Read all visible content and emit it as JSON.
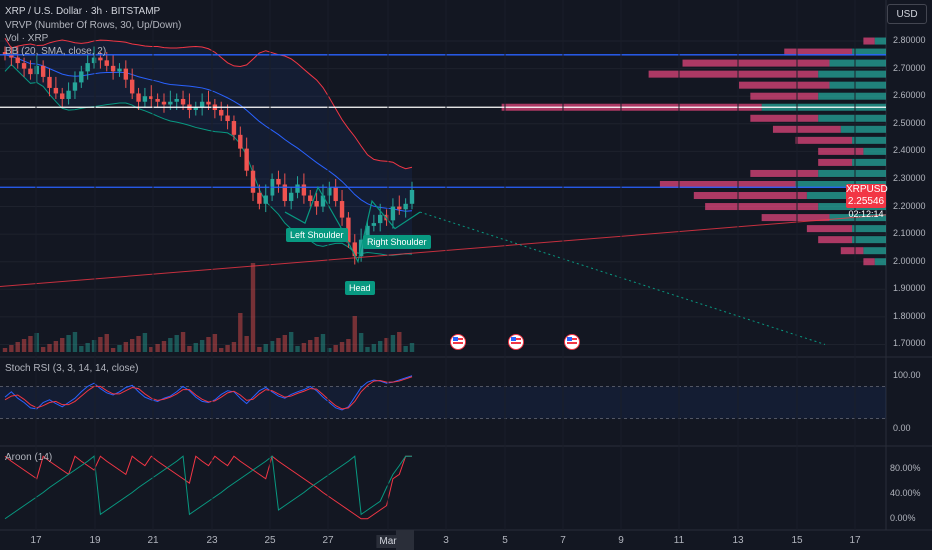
{
  "legend": {
    "title": "XRP / U.S. Dollar · 3h · BITSTAMP",
    "vrvp": "VRVP (Number Of Rows, 30, Up/Down)",
    "vol": "Vol · XRP",
    "bb": "BB (20, SMA, close, 2)"
  },
  "currency_button": "USD",
  "price_tag": {
    "symbol": "XRPUSD",
    "price": "2.25546",
    "countdown": "02:12:14"
  },
  "patterns": {
    "left": "Left Shoulder",
    "head": "Head",
    "right": "Right Shoulder"
  },
  "colors": {
    "up": "#26a69a",
    "down": "#ef5350",
    "blue": "#2962ff",
    "bg": "#131722"
  },
  "chart_data": [
    {
      "type": "candlestick",
      "title": "XRP / U.S. Dollar · 3h · BITSTAMP",
      "y_ticks": [
        "2.80000",
        "2.70000",
        "2.60000",
        "2.50000",
        "2.40000",
        "2.30000",
        "2.20000",
        "2.10000",
        "2.00000",
        "1.90000",
        "1.80000",
        "1.70000"
      ],
      "x_ticks": [
        "17",
        "19",
        "21",
        "23",
        "25",
        "27",
        "Mar",
        "3",
        "5",
        "7",
        "9",
        "11",
        "13",
        "15",
        "17"
      ],
      "active_x_tick": "Mar",
      "ylim": [
        1.68,
        2.84
      ],
      "horizontal_levels": [
        {
          "price": 2.75,
          "color": "#2962ff"
        },
        {
          "price": 2.56,
          "color": "#ffffff"
        },
        {
          "price": 2.27,
          "color": "#2962ff"
        }
      ],
      "close_prices": [
        2.75,
        2.74,
        2.72,
        2.7,
        2.68,
        2.71,
        2.67,
        2.63,
        2.61,
        2.59,
        2.62,
        2.65,
        2.69,
        2.72,
        2.74,
        2.73,
        2.71,
        2.69,
        2.7,
        2.66,
        2.61,
        2.58,
        2.6,
        2.59,
        2.58,
        2.57,
        2.58,
        2.59,
        2.57,
        2.55,
        2.56,
        2.58,
        2.57,
        2.55,
        2.53,
        2.51,
        2.46,
        2.41,
        2.33,
        2.25,
        2.21,
        2.24,
        2.3,
        2.28,
        2.22,
        2.25,
        2.28,
        2.24,
        2.22,
        2.2,
        2.24,
        2.27,
        2.22,
        2.16,
        2.07,
        2.02,
        2.08,
        2.13,
        2.14,
        2.17,
        2.15,
        2.2,
        2.19,
        2.21,
        2.26
      ],
      "volume_profile": [
        {
          "price": 2.8,
          "up": 0.1,
          "down": 0.1
        },
        {
          "price": 2.76,
          "up": 0.3,
          "down": 0.6
        },
        {
          "price": 2.72,
          "up": 0.5,
          "down": 1.3
        },
        {
          "price": 2.68,
          "up": 0.6,
          "down": 1.5
        },
        {
          "price": 2.64,
          "up": 0.5,
          "down": 0.8
        },
        {
          "price": 2.6,
          "up": 0.6,
          "down": 0.6
        },
        {
          "price": 2.56,
          "up": 1.1,
          "down": 2.3
        },
        {
          "price": 2.52,
          "up": 0.6,
          "down": 0.6
        },
        {
          "price": 2.48,
          "up": 0.4,
          "down": 0.6
        },
        {
          "price": 2.44,
          "up": 0.3,
          "down": 0.5
        },
        {
          "price": 2.4,
          "up": 0.2,
          "down": 0.4
        },
        {
          "price": 2.36,
          "up": 0.3,
          "down": 0.3
        },
        {
          "price": 2.32,
          "up": 0.6,
          "down": 0.6
        },
        {
          "price": 2.28,
          "up": 0.8,
          "down": 1.2
        },
        {
          "price": 2.24,
          "up": 0.7,
          "down": 1.0
        },
        {
          "price": 2.2,
          "up": 0.6,
          "down": 1.0
        },
        {
          "price": 2.16,
          "up": 0.5,
          "down": 0.6
        },
        {
          "price": 2.12,
          "up": 0.3,
          "down": 0.4
        },
        {
          "price": 2.08,
          "up": 0.3,
          "down": 0.3
        },
        {
          "price": 2.04,
          "up": 0.2,
          "down": 0.2
        },
        {
          "price": 2.0,
          "up": 0.1,
          "down": 0.1
        }
      ]
    },
    {
      "type": "line",
      "title": "Stoch RSI (3, 3, 14, 14, close)",
      "y_ticks": [
        "100.00",
        "0.00"
      ],
      "ylim": [
        -20,
        120
      ],
      "series": [
        {
          "values": [
            60,
            70,
            58,
            50,
            40,
            38,
            50,
            55,
            48,
            42,
            50,
            58,
            70,
            80,
            86,
            76,
            68,
            64,
            70,
            78,
            82,
            70,
            60,
            55,
            52,
            58,
            62,
            70,
            80,
            72,
            60,
            52,
            50,
            55,
            65,
            72,
            70,
            58,
            48,
            60,
            72,
            78,
            70,
            62,
            58,
            65,
            70,
            74,
            80,
            72,
            60,
            50,
            40,
            36,
            42,
            60,
            78,
            88,
            92,
            90,
            86,
            88,
            92,
            96,
            100
          ],
          "color": "#2962ff"
        },
        {
          "values": [
            55,
            62,
            64,
            56,
            46,
            40,
            44,
            50,
            52,
            46,
            46,
            52,
            62,
            72,
            80,
            80,
            72,
            66,
            66,
            72,
            78,
            76,
            66,
            58,
            54,
            56,
            60,
            66,
            74,
            74,
            64,
            56,
            51,
            53,
            60,
            68,
            71,
            64,
            54,
            56,
            66,
            74,
            72,
            66,
            60,
            62,
            67,
            71,
            76,
            75,
            65,
            54,
            44,
            38,
            40,
            52,
            70,
            82,
            90,
            91,
            88,
            88,
            90,
            94,
            98
          ],
          "color": "#f23645"
        }
      ]
    },
    {
      "type": "line",
      "title": "Aroon (14)",
      "y_ticks": [
        "80.00%",
        "40.00%",
        "0.00%"
      ],
      "ylim": [
        -10,
        110
      ],
      "series": [
        {
          "values": [
            100,
            92,
            85,
            78,
            71,
            64,
            100,
            92,
            85,
            78,
            71,
            100,
            92,
            85,
            78,
            100,
            92,
            85,
            78,
            71,
            100,
            92,
            85,
            100,
            92,
            85,
            78,
            71,
            64,
            57,
            100,
            92,
            85,
            100,
            92,
            85,
            100,
            92,
            85,
            78,
            71,
            64,
            100,
            92,
            85,
            78,
            71,
            64,
            57,
            50,
            42,
            35,
            28,
            21,
            14,
            7,
            0,
            0,
            7,
            14,
            21,
            64,
            71,
            100,
            100
          ],
          "color": "#f23645"
        },
        {
          "values": [
            0,
            7,
            14,
            21,
            28,
            35,
            42,
            50,
            57,
            64,
            71,
            78,
            85,
            92,
            100,
            7,
            14,
            21,
            28,
            35,
            42,
            50,
            57,
            64,
            71,
            78,
            85,
            92,
            100,
            7,
            14,
            21,
            28,
            35,
            42,
            50,
            57,
            64,
            71,
            78,
            85,
            92,
            100,
            14,
            21,
            28,
            35,
            42,
            50,
            57,
            64,
            71,
            78,
            85,
            92,
            100,
            7,
            14,
            21,
            28,
            50,
            71,
            85,
            100,
            100
          ],
          "color": "#089981"
        }
      ]
    }
  ]
}
